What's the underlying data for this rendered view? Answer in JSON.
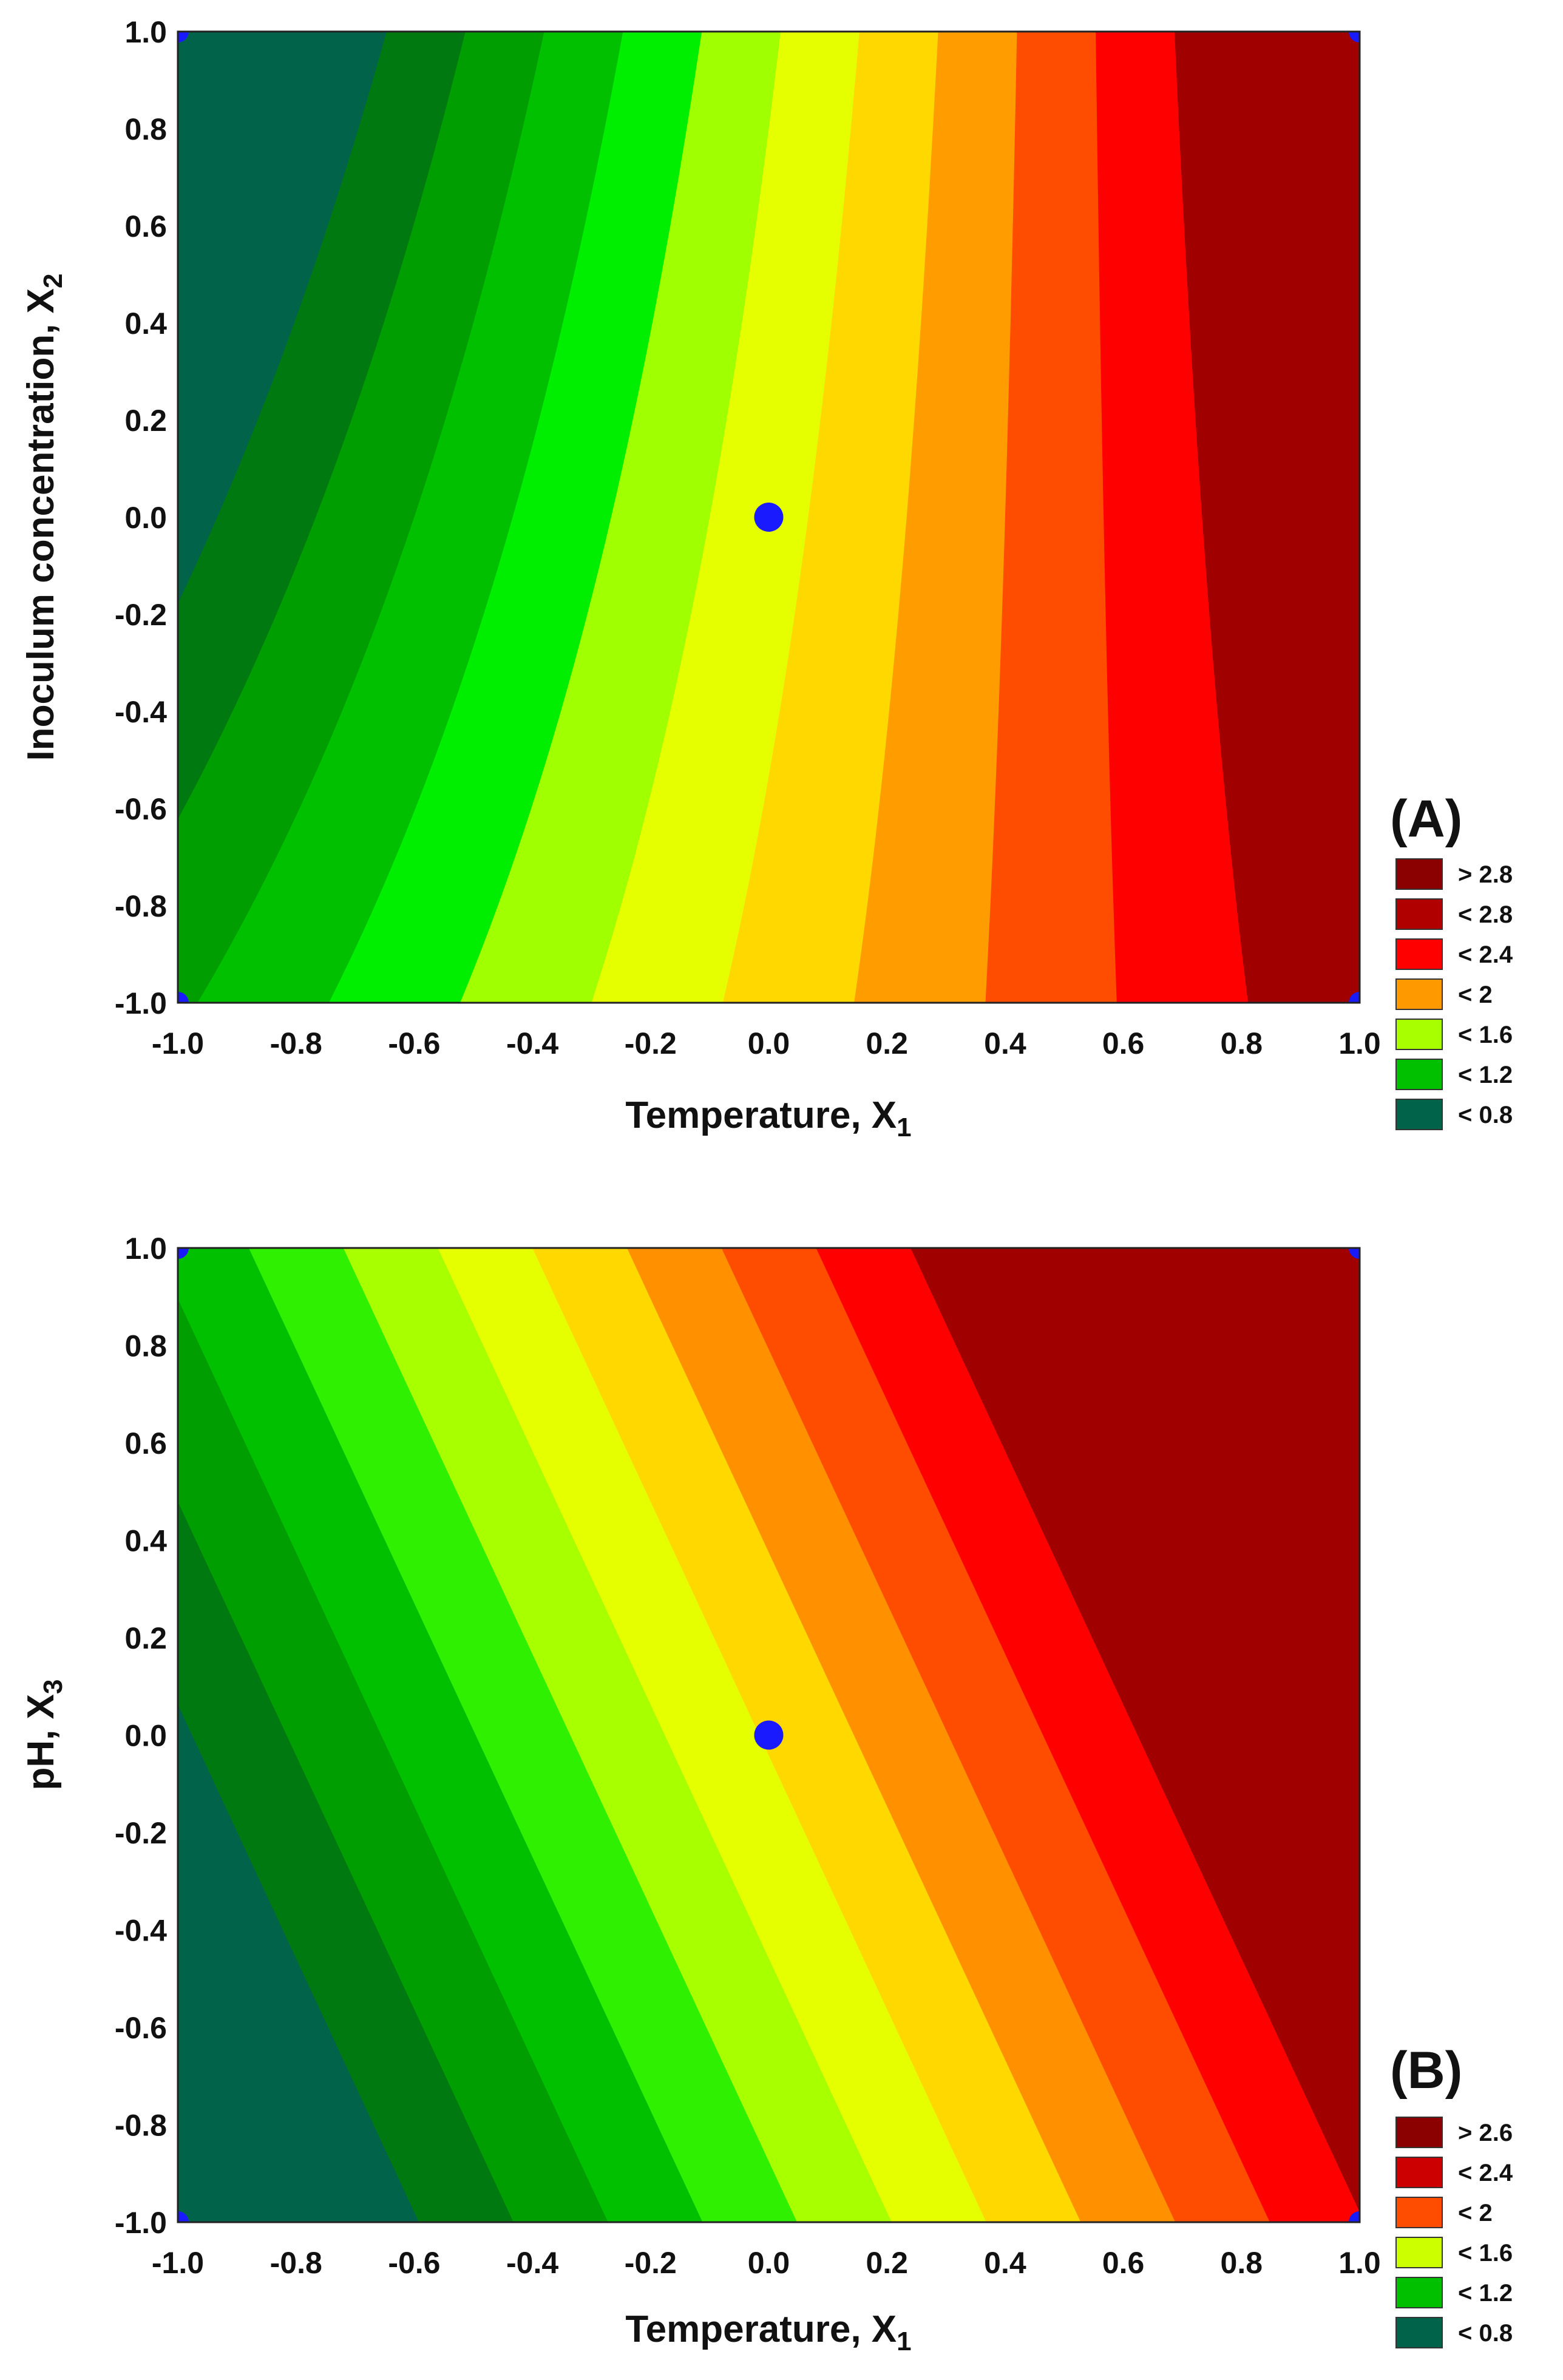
{
  "chart_data": [
    {
      "type": "contour",
      "panel_label": "(A)",
      "xlabel": "Temperature, X",
      "xlabel_sub": "1",
      "ylabel": "Inoculum concentration, X",
      "ylabel_sub": "2",
      "xlim": [
        -1.0,
        1.0
      ],
      "ylim": [
        -1.0,
        1.0
      ],
      "x_ticks": [
        "-1.0",
        "-0.8",
        "-0.6",
        "-0.4",
        "-0.2",
        "0.0",
        "0.2",
        "0.4",
        "0.6",
        "0.8",
        "1.0"
      ],
      "y_ticks": [
        "-1.0",
        "-0.8",
        "-0.6",
        "-0.4",
        "-0.2",
        "0.0",
        "0.2",
        "0.4",
        "0.6",
        "0.8",
        "1.0"
      ],
      "model": {
        "a": 1.92,
        "b": 1.2,
        "c": -0.15,
        "d": 0.3
      },
      "bands": {
        "levels": [
          0.8,
          1.0,
          1.2,
          1.4,
          1.6,
          1.8,
          2.0,
          2.2,
          2.4,
          2.6,
          2.8
        ],
        "colors": [
          "#00634a",
          "#007a10",
          "#009e00",
          "#00c000",
          "#00ee00",
          "#a0ff00",
          "#e6ff00",
          "#ffd800",
          "#ff9c00",
          "#ff4d00",
          "#ff0000",
          "#a00000"
        ]
      },
      "legend": [
        {
          "label": "> 2.8",
          "color": "#8b0000"
        },
        {
          "label": "< 2.8",
          "color": "#b00000"
        },
        {
          "label": "< 2.4",
          "color": "#ff0000"
        },
        {
          "label": "< 2",
          "color": "#ff9900"
        },
        {
          "label": "< 1.6",
          "color": "#a8ff00"
        },
        {
          "label": "< 1.2",
          "color": "#00c000"
        },
        {
          "label": "< 0.8",
          "color": "#00634a"
        }
      ],
      "design_points": [
        {
          "x": 0.0,
          "y": 0.0
        },
        {
          "x": -1.0,
          "y": 1.0
        },
        {
          "x": 1.0,
          "y": 1.0
        },
        {
          "x": -1.0,
          "y": -1.0
        },
        {
          "x": 1.0,
          "y": -1.0
        }
      ],
      "point_color": "#1a1aff"
    },
    {
      "type": "contour",
      "panel_label": "(B)",
      "xlabel": "Temperature, X",
      "xlabel_sub": "1",
      "ylabel": "pH, X",
      "ylabel_sub": "3",
      "xlim": [
        -1.0,
        1.0
      ],
      "ylim": [
        -1.0,
        1.0
      ],
      "x_ticks": [
        "-1.0",
        "-0.8",
        "-0.6",
        "-0.4",
        "-0.2",
        "0.0",
        "0.2",
        "0.4",
        "0.6",
        "0.8",
        "1.0"
      ],
      "y_ticks": [
        "-1.0",
        "-0.8",
        "-0.6",
        "-0.4",
        "-0.2",
        "0.0",
        "0.2",
        "0.4",
        "0.6",
        "0.8",
        "1.0"
      ],
      "model": {
        "a": 1.82,
        "b": 1.25,
        "c": 0.48,
        "d": 0.0
      },
      "bands": {
        "levels": [
          0.6,
          0.8,
          1.0,
          1.2,
          1.4,
          1.6,
          1.8,
          2.0,
          2.2,
          2.4,
          2.6
        ],
        "colors": [
          "#00634a",
          "#007a10",
          "#009e00",
          "#00c000",
          "#2ef000",
          "#a8ff00",
          "#e6ff00",
          "#ffd800",
          "#ff9000",
          "#ff4d00",
          "#ff0000",
          "#a00000"
        ]
      },
      "legend": [
        {
          "label": "> 2.6",
          "color": "#8b0000"
        },
        {
          "label": "< 2.4",
          "color": "#cc0000"
        },
        {
          "label": "< 2",
          "color": "#ff4d00"
        },
        {
          "label": "< 1.6",
          "color": "#ccff00"
        },
        {
          "label": "< 1.2",
          "color": "#00c000"
        },
        {
          "label": "< 0.8",
          "color": "#00634a"
        }
      ],
      "design_points": [
        {
          "x": 0.0,
          "y": 0.0
        },
        {
          "x": -1.0,
          "y": 1.0
        },
        {
          "x": 1.0,
          "y": 1.0
        },
        {
          "x": -1.0,
          "y": -1.0
        },
        {
          "x": 1.0,
          "y": -1.0
        }
      ],
      "point_color": "#1a1aff"
    }
  ]
}
